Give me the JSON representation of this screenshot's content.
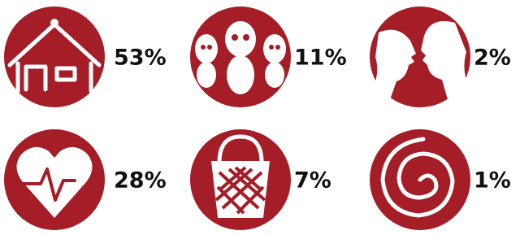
{
  "items": [
    {
      "label": "53%"
    },
    {
      "label": "11%"
    },
    {
      "label": "2%"
    },
    {
      "label": "28%"
    },
    {
      "label": "7%"
    },
    {
      "label": "1%"
    }
  ]
}
